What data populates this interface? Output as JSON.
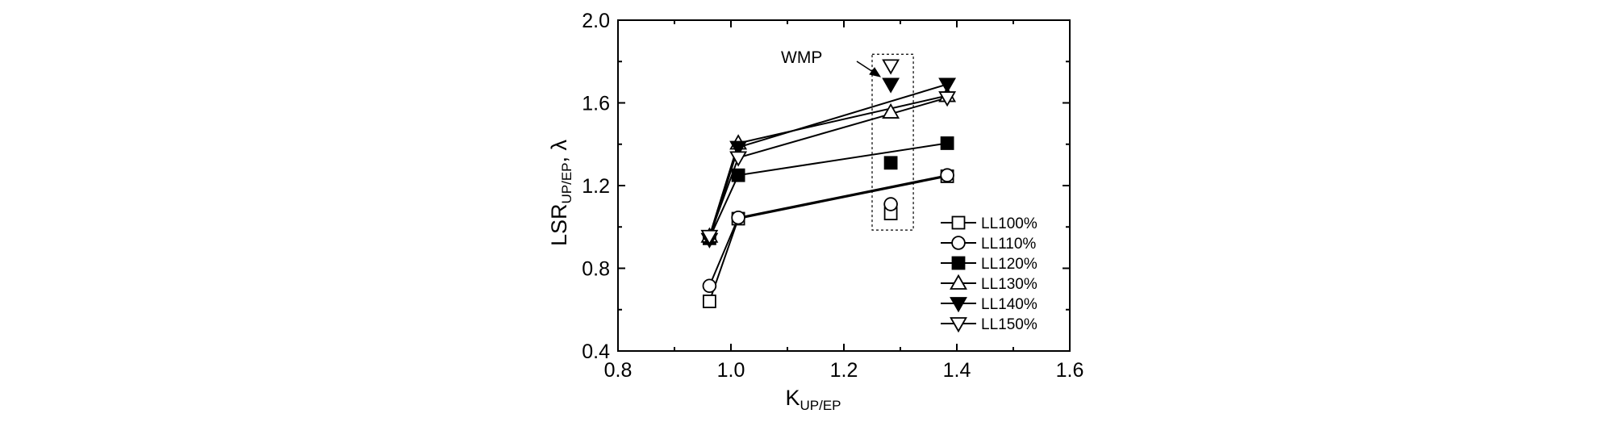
{
  "chart_data": {
    "type": "line",
    "xlabel": {
      "main": "K",
      "sub": "UP/EP"
    },
    "ylabel": {
      "main": "LSR",
      "sub": "UP/EP",
      "suffix": ", λ"
    },
    "xlim": [
      0.8,
      1.6
    ],
    "ylim": [
      0.4,
      2.0
    ],
    "xticks": [
      0.8,
      1.0,
      1.2,
      1.4,
      1.6
    ],
    "yticks": [
      0.4,
      0.8,
      1.2,
      1.6,
      2.0
    ],
    "xtick_labels": [
      "0.8",
      "1.0",
      "1.2",
      "1.4",
      "1.6"
    ],
    "ytick_labels": [
      "0.4",
      "0.8",
      "1.2",
      "1.6",
      "2.0"
    ],
    "grid": false,
    "legend_position": "lower-right",
    "series": [
      {
        "name": "LL100%",
        "marker": "square",
        "filled": false,
        "x": [
          0.962,
          1.013,
          1.383
        ],
        "y": [
          0.64,
          1.04,
          1.245
        ],
        "outlier": {
          "x": 1.283,
          "y": 1.065
        }
      },
      {
        "name": "LL110%",
        "marker": "circle",
        "filled": false,
        "x": [
          0.962,
          1.013,
          1.383
        ],
        "y": [
          0.715,
          1.045,
          1.25
        ],
        "outlier": {
          "x": 1.283,
          "y": 1.11
        }
      },
      {
        "name": "LL120%",
        "marker": "square",
        "filled": true,
        "x": [
          0.962,
          1.013,
          1.383
        ],
        "y": [
          0.945,
          1.25,
          1.405
        ],
        "outlier": {
          "x": 1.283,
          "y": 1.31
        }
      },
      {
        "name": "LL130%",
        "marker": "triangle-up",
        "filled": false,
        "x": [
          0.962,
          1.013,
          1.383
        ],
        "y": [
          0.955,
          1.405,
          1.635
        ],
        "outlier": {
          "x": 1.283,
          "y": 1.555
        }
      },
      {
        "name": "LL140%",
        "marker": "triangle-down",
        "filled": true,
        "x": [
          0.962,
          1.013,
          1.383
        ],
        "y": [
          0.94,
          1.385,
          1.69
        ],
        "outlier": {
          "x": 1.283,
          "y": 1.69
        }
      },
      {
        "name": "LL150%",
        "marker": "triangle-down",
        "filled": false,
        "x": [
          0.962,
          1.013,
          1.383
        ],
        "y": [
          0.955,
          1.335,
          1.625
        ],
        "outlier": {
          "x": 1.283,
          "y": 1.78
        }
      }
    ],
    "annotations": [
      {
        "text": "WMP",
        "box_x": [
          1.25,
          1.323
        ],
        "box_y": [
          0.985,
          1.835
        ]
      }
    ]
  }
}
